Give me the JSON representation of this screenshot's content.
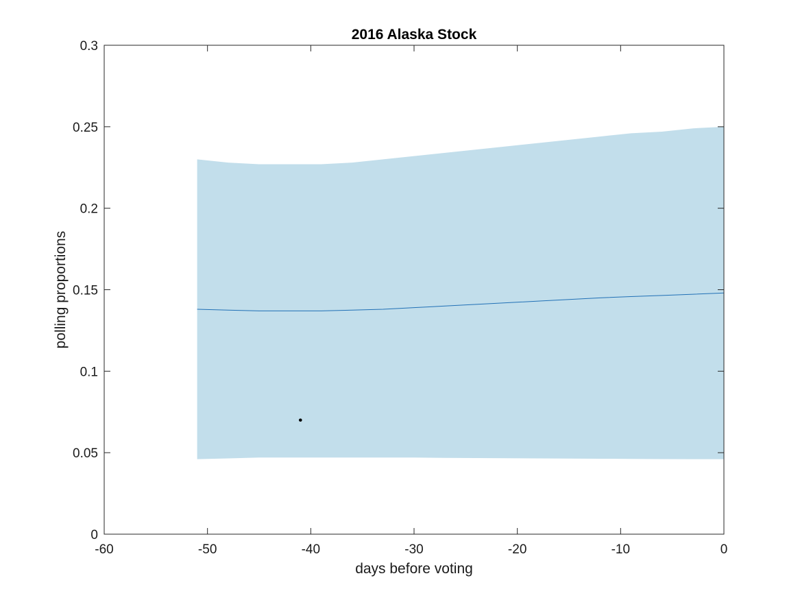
{
  "chart_data": {
    "type": "area",
    "title": "2016 Alaska Stock",
    "xlabel": "days before voting",
    "ylabel": "polling proportions",
    "xlim": [
      -60,
      0
    ],
    "ylim": [
      0,
      0.3
    ],
    "xticks": [
      -60,
      -50,
      -40,
      -30,
      -20,
      -10,
      0
    ],
    "yticks": [
      0,
      0.05,
      0.1,
      0.15,
      0.2,
      0.25,
      0.3
    ],
    "xtick_labels": [
      "-60",
      "-50",
      "-40",
      "-30",
      "-20",
      "-10",
      "0"
    ],
    "ytick_labels": [
      "0",
      "0.05",
      "0.1",
      "0.15",
      "0.2",
      "0.25",
      "0.3"
    ],
    "grid": false,
    "band": {
      "x": [
        -51,
        -48,
        -45,
        -42,
        -39,
        -36,
        -33,
        -30,
        -27,
        -24,
        -21,
        -18,
        -15,
        -12,
        -9,
        -6,
        -3,
        0
      ],
      "upper": [
        0.23,
        0.228,
        0.227,
        0.227,
        0.227,
        0.228,
        0.23,
        0.232,
        0.234,
        0.236,
        0.238,
        0.24,
        0.242,
        0.244,
        0.246,
        0.247,
        0.249,
        0.25
      ],
      "lower": [
        0.046,
        0.0465,
        0.047,
        0.047,
        0.047,
        0.047,
        0.047,
        0.047,
        0.0468,
        0.0467,
        0.0466,
        0.0465,
        0.0464,
        0.0463,
        0.0462,
        0.0461,
        0.046,
        0.046
      ],
      "color": "#c2deeb"
    },
    "mean_line": {
      "x": [
        -51,
        -48,
        -45,
        -42,
        -39,
        -36,
        -33,
        -30,
        -27,
        -24,
        -21,
        -18,
        -15,
        -12,
        -9,
        -6,
        -3,
        0
      ],
      "y": [
        0.138,
        0.1375,
        0.137,
        0.137,
        0.137,
        0.1375,
        0.138,
        0.139,
        0.14,
        0.141,
        0.142,
        0.143,
        0.144,
        0.145,
        0.1458,
        0.1465,
        0.1472,
        0.148
      ],
      "color": "#1f6fb5"
    },
    "points": [
      {
        "x": -41,
        "y": 0.07
      }
    ],
    "point_color": "#000000"
  }
}
